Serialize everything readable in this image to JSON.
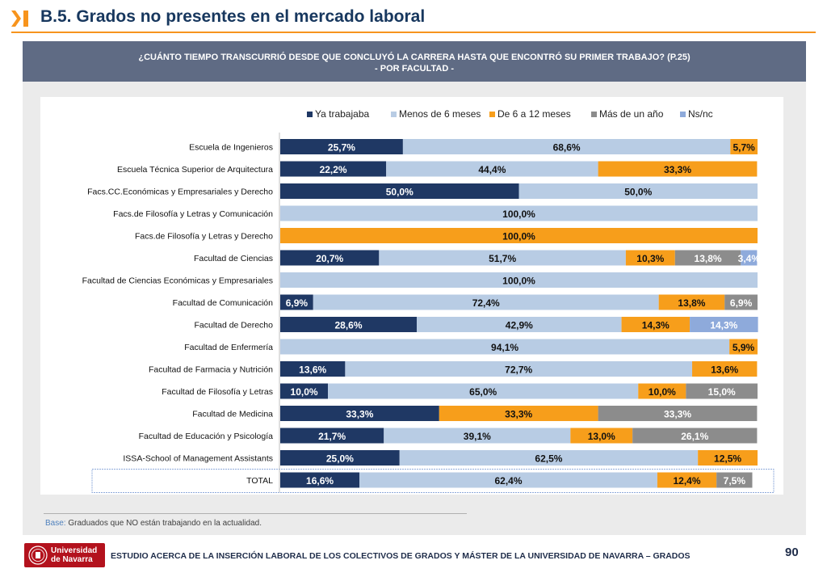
{
  "header": {
    "title": "B.5. Grados no presentes en el mercado laboral"
  },
  "question": {
    "line1": "¿CUÁNTO TIEMPO TRANSCURRIÓ DESDE QUE CONCLUYÓ LA CARRERA HASTA QUE ENCONTRÓ SU PRIMER TRABAJO? (P.25)",
    "line2": "- POR FACULTAD -"
  },
  "colors": {
    "accent": "#f7941d",
    "title": "#17375e",
    "band": "#5f6b84",
    "series": [
      "#1f3864",
      "#b8cce4",
      "#f79e1b",
      "#8c8c8c",
      "#8eaadb"
    ],
    "label_text": [
      "#ffffff",
      "#111111",
      "#111111",
      "#ffffff",
      "#ffffff"
    ]
  },
  "chart_data": {
    "type": "bar",
    "orientation": "horizontal",
    "stacked": true,
    "xlim": [
      0,
      100
    ],
    "unit": "%",
    "grid": false,
    "legend_position": "top",
    "title": "",
    "xlabel": "",
    "ylabel": "",
    "categories": [
      "Escuela de Ingenieros",
      "Escuela Técnica Superior de Arquitectura",
      "Facs.CC.Económicas y Empresariales y Derecho",
      "Facs.de Filosofía y Letras y Comunicación",
      "Facs.de Filosofía y Letras y Derecho",
      "Facultad de Ciencias",
      "Facultad de Ciencias Económicas y Empresariales",
      "Facultad de Comunicación",
      "Facultad de Derecho",
      "Facultad de Enfermería",
      "Facultad de Farmacia y Nutrición",
      "Facultad de Filosofía y Letras",
      "Facultad de Medicina",
      "Facultad de Educación y Psicología",
      "ISSA-School of Management Assistants",
      "TOTAL"
    ],
    "series": [
      {
        "name": "Ya trabajaba",
        "values": [
          25.7,
          22.2,
          50.0,
          0,
          0,
          20.7,
          0,
          6.9,
          28.6,
          0,
          13.6,
          10.0,
          33.3,
          21.7,
          25.0,
          16.6
        ],
        "labels": [
          "25,7%",
          "22,2%",
          "50,0%",
          "",
          "",
          "20,7%",
          "",
          "6,9%",
          "28,6%",
          "",
          "13,6%",
          "10,0%",
          "33,3%",
          "21,7%",
          "25,0%",
          "16,6%"
        ]
      },
      {
        "name": "Menos de 6 meses",
        "values": [
          68.6,
          44.4,
          50.0,
          100.0,
          0,
          51.7,
          100.0,
          72.4,
          42.9,
          94.1,
          72.7,
          65.0,
          0,
          39.1,
          62.5,
          62.4
        ],
        "labels": [
          "68,6%",
          "44,4%",
          "50,0%",
          "100,0%",
          "",
          "51,7%",
          "100,0%",
          "72,4%",
          "42,9%",
          "94,1%",
          "72,7%",
          "65,0%",
          "",
          "39,1%",
          "62,5%",
          "62,4%"
        ]
      },
      {
        "name": "De 6 a 12 meses",
        "values": [
          5.7,
          33.3,
          0,
          0,
          100.0,
          10.3,
          0,
          13.8,
          14.3,
          5.9,
          13.6,
          10.0,
          33.3,
          13.0,
          12.5,
          12.4
        ],
        "labels": [
          "5,7%",
          "33,3%",
          "",
          "",
          "100,0%",
          "10,3%",
          "",
          "13,8%",
          "14,3%",
          "5,9%",
          "13,6%",
          "10,0%",
          "33,3%",
          "13,0%",
          "12,5%",
          "12,4%"
        ]
      },
      {
        "name": "Más de un año",
        "values": [
          0,
          0,
          0,
          0,
          0,
          13.8,
          0,
          6.9,
          0,
          0,
          0,
          15.0,
          33.3,
          26.1,
          0,
          7.5
        ],
        "labels": [
          "",
          "",
          "",
          "",
          "",
          "13,8%",
          "",
          "6,9%",
          "",
          "",
          "",
          "15,0%",
          "33,3%",
          "26,1%",
          "",
          "7,5%"
        ]
      },
      {
        "name": "Ns/nc",
        "values": [
          0,
          0,
          0,
          0,
          0,
          3.4,
          0,
          0,
          14.3,
          0,
          0,
          0,
          0,
          0,
          0,
          0
        ],
        "labels": [
          "",
          "",
          "",
          "",
          "",
          "3,4%",
          "",
          "",
          "14,3%",
          "",
          "",
          "",
          "",
          "",
          "",
          ""
        ]
      }
    ],
    "highlighted_category": "TOTAL"
  },
  "base_note": {
    "label": "Base:",
    "text": "Graduados que NO están trabajando en la actualidad."
  },
  "footer": {
    "logo_line1": "Universidad",
    "logo_line2": "de Navarra",
    "title": "ESTUDIO ACERCA DE LA INSERCIÓN LABORAL DE LOS COLECTIVOS DE GRADOS Y MÁSTER DE LA UNIVERSIDAD DE NAVARRA – GRADOS",
    "page_number": "90"
  }
}
